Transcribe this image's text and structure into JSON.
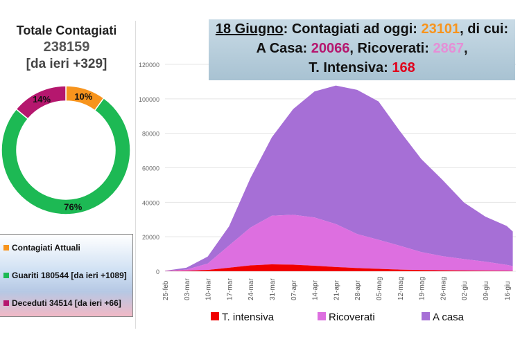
{
  "summary": {
    "title": "Totale Contagiati",
    "total": "238159",
    "delta": "[da ieri +329]"
  },
  "donut": {
    "slices": [
      {
        "label": "Contagiati Attuali",
        "pct": 10,
        "pct_label": "10%",
        "color": "#f7941d"
      },
      {
        "label": "Guariti",
        "pct": 76,
        "pct_label": "76%",
        "color": "#1db954"
      },
      {
        "label": "Deceduti",
        "pct": 14,
        "pct_label": "14%",
        "color": "#b5176e"
      }
    ]
  },
  "legend_box": [
    {
      "text": "Contagiati Attuali",
      "color": "#f7941d"
    },
    {
      "text": "Guariti 180544 [da ieri +1089]",
      "color": "#1db954"
    },
    {
      "text": "Deceduti 34514 [da ieri +66]",
      "color": "#b5176e"
    }
  ],
  "banner": {
    "date": "18 Giugno",
    "l1a": ": Contagiati ad oggi: ",
    "v1": "23101",
    "l1b": ", di cui:",
    "l2a": "A Casa: ",
    "v2": "20066",
    "l2b": ", Ricoverati: ",
    "v3": "2867",
    "l2c": ",",
    "l3a": "T. Intensiva: ",
    "v4": "168",
    "c1": "#f7941d",
    "c2": "#b5176e",
    "c3": "#e58fd6",
    "c4": "#e0001b"
  },
  "chart_data": {
    "type": "area",
    "stacked": true,
    "ylim": [
      0,
      120000
    ],
    "yticks": [
      0,
      20000,
      40000,
      60000,
      80000,
      100000,
      120000
    ],
    "x": [
      "25-feb",
      "03-mar",
      "10-mar",
      "17-mar",
      "24-mar",
      "31-mar",
      "07-apr",
      "14-apr",
      "21-apr",
      "28-apr",
      "05-mag",
      "12-mag",
      "19-mag",
      "26-mag",
      "02-giu",
      "09-giu",
      "16-giu",
      "18-giu"
    ],
    "xticks": [
      "25-feb",
      "03-mar",
      "10-mar",
      "17-mar",
      "24-mar",
      "31-mar",
      "07-apr",
      "14-apr",
      "21-apr",
      "28-apr",
      "05-mag",
      "12-mag",
      "19-mag",
      "26-mag",
      "02-giu",
      "09-giu",
      "16-giu"
    ],
    "series": [
      {
        "name": "T. intensiva",
        "color": "#f00000",
        "values": [
          35,
          229,
          733,
          2060,
          3396,
          4023,
          3792,
          3186,
          2471,
          1863,
          1427,
          952,
          716,
          541,
          408,
          283,
          209,
          168
        ]
      },
      {
        "name": "Ricoverati",
        "color": "#dd6fe0",
        "values": [
          99,
          742,
          3724,
          12894,
          21937,
          28192,
          28976,
          28011,
          24906,
          19723,
          16823,
          13834,
          10400,
          8185,
          6680,
          5300,
          3500,
          2867
        ]
      },
      {
        "name": "A casa",
        "color": "#a66fd6",
        "values": [
          188,
          1065,
          4057,
          11108,
          28697,
          45420,
          61299,
          73094,
          80332,
          83619,
          80217,
          66480,
          54013,
          44216,
          32805,
          26127,
          22565,
          20066
        ]
      }
    ]
  }
}
